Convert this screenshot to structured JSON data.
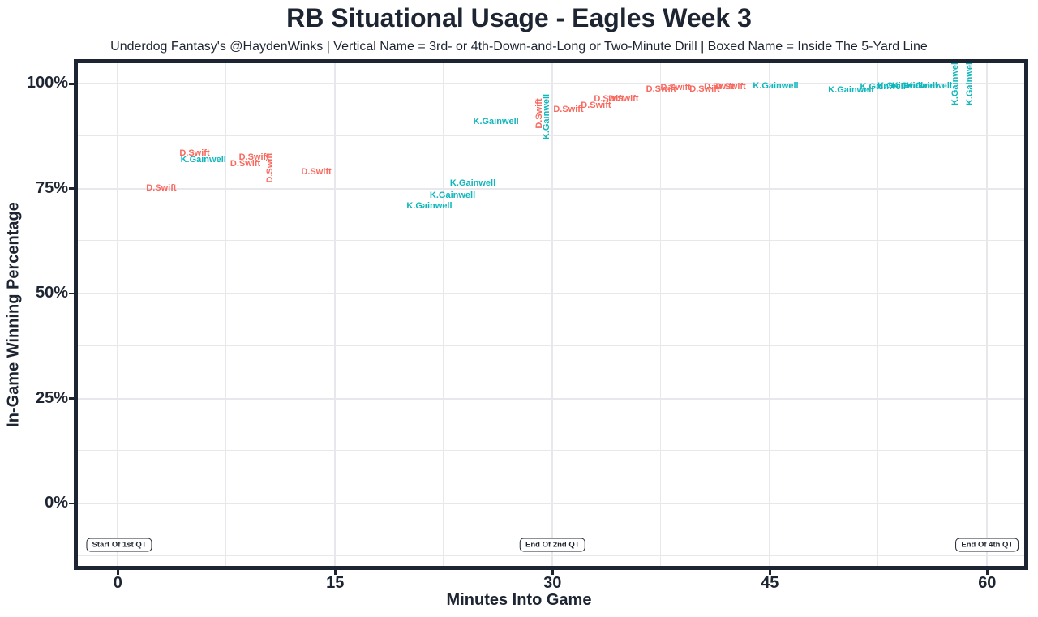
{
  "header": {
    "title": "RB Situational Usage - Eagles Week 3",
    "subtitle": "Underdog Fantasy's @HaydenWinks | Vertical Name = 3rd- or 4th-Down-and-Long or Two-Minute Drill | Boxed Name = Inside The 5-Yard Line"
  },
  "colors": {
    "dark_text": "#1e2532",
    "grid": "#e8e8ec",
    "panel_border": "#1e2532",
    "background": "#ffffff",
    "d_swift": "#f8695f",
    "k_gainwell": "#10b6bb"
  },
  "chart_data": {
    "type": "scatter",
    "title": "RB Situational Usage - Eagles Week 3",
    "subtitle": "Underdog Fantasy's @HaydenWinks | Vertical Name = 3rd- or 4th-Down-and-Long or Two-Minute Drill | Boxed Name = Inside The 5-Yard Line",
    "xlabel": "Minutes Into Game",
    "ylabel": "In-Game Winning Percentage",
    "xlim": [
      -2.8,
      62.6
    ],
    "ylim": [
      -15.0,
      105.3
    ],
    "grid": "major-and-minor",
    "legend_position": "none",
    "point_marker": "player-name-text",
    "x_ticks": [
      {
        "value": 0,
        "label": "0"
      },
      {
        "value": 15,
        "label": "15"
      },
      {
        "value": 30,
        "label": "30"
      },
      {
        "value": 45,
        "label": "45"
      },
      {
        "value": 60,
        "label": "60"
      }
    ],
    "y_ticks": [
      {
        "value": 0,
        "label": "0%"
      },
      {
        "value": 25,
        "label": "25%"
      },
      {
        "value": 50,
        "label": "50%"
      },
      {
        "value": 75,
        "label": "75%"
      },
      {
        "value": 100,
        "label": "100%"
      }
    ],
    "series": [
      {
        "name": "D.Swift",
        "color": "#f8695f",
        "points": [
          {
            "x": 3.0,
            "y": 75.2,
            "orientation": "horizontal"
          },
          {
            "x": 5.3,
            "y": 83.5,
            "orientation": "horizontal"
          },
          {
            "x": 8.8,
            "y": 81.0,
            "orientation": "horizontal"
          },
          {
            "x": 9.4,
            "y": 82.4,
            "orientation": "horizontal"
          },
          {
            "x": 10.5,
            "y": 80.0,
            "orientation": "vertical"
          },
          {
            "x": 13.7,
            "y": 79.0,
            "orientation": "horizontal"
          },
          {
            "x": 29.1,
            "y": 92.9,
            "orientation": "vertical"
          },
          {
            "x": 31.1,
            "y": 93.9,
            "orientation": "horizontal"
          },
          {
            "x": 33.0,
            "y": 94.8,
            "orientation": "horizontal"
          },
          {
            "x": 33.9,
            "y": 96.4,
            "orientation": "horizontal"
          },
          {
            "x": 34.9,
            "y": 96.4,
            "orientation": "horizontal"
          },
          {
            "x": 37.5,
            "y": 98.7,
            "orientation": "horizontal"
          },
          {
            "x": 38.5,
            "y": 99.0,
            "orientation": "horizontal"
          },
          {
            "x": 40.5,
            "y": 98.7,
            "orientation": "horizontal"
          },
          {
            "x": 41.5,
            "y": 99.3,
            "orientation": "horizontal"
          },
          {
            "x": 42.3,
            "y": 99.3,
            "orientation": "horizontal"
          }
        ]
      },
      {
        "name": "K.Gainwell",
        "color": "#10b6bb",
        "points": [
          {
            "x": 5.9,
            "y": 81.9,
            "orientation": "horizontal"
          },
          {
            "x": 21.5,
            "y": 70.9,
            "orientation": "horizontal"
          },
          {
            "x": 23.1,
            "y": 73.4,
            "orientation": "horizontal"
          },
          {
            "x": 24.5,
            "y": 76.3,
            "orientation": "horizontal"
          },
          {
            "x": 26.1,
            "y": 91.0,
            "orientation": "horizontal"
          },
          {
            "x": 29.6,
            "y": 92.2,
            "orientation": "vertical"
          },
          {
            "x": 45.4,
            "y": 99.5,
            "orientation": "horizontal"
          },
          {
            "x": 50.6,
            "y": 98.5,
            "orientation": "horizontal"
          },
          {
            "x": 52.8,
            "y": 99.2,
            "orientation": "horizontal"
          },
          {
            "x": 54.0,
            "y": 99.4,
            "orientation": "horizontal"
          },
          {
            "x": 55.0,
            "y": 99.4,
            "orientation": "horizontal"
          },
          {
            "x": 56.0,
            "y": 99.4,
            "orientation": "horizontal"
          },
          {
            "x": 57.8,
            "y": 100.3,
            "orientation": "vertical"
          },
          {
            "x": 58.8,
            "y": 100.3,
            "orientation": "vertical"
          }
        ]
      }
    ],
    "annotations": [
      {
        "label": "Start Of 1st QT",
        "x": 0.1,
        "y": -9.9,
        "boxed": true
      },
      {
        "label": "End Of 2nd QT",
        "x": 30.0,
        "y": -9.9,
        "boxed": true
      },
      {
        "label": "End Of 4th QT",
        "x": 60.0,
        "y": -9.9,
        "boxed": true
      }
    ]
  }
}
